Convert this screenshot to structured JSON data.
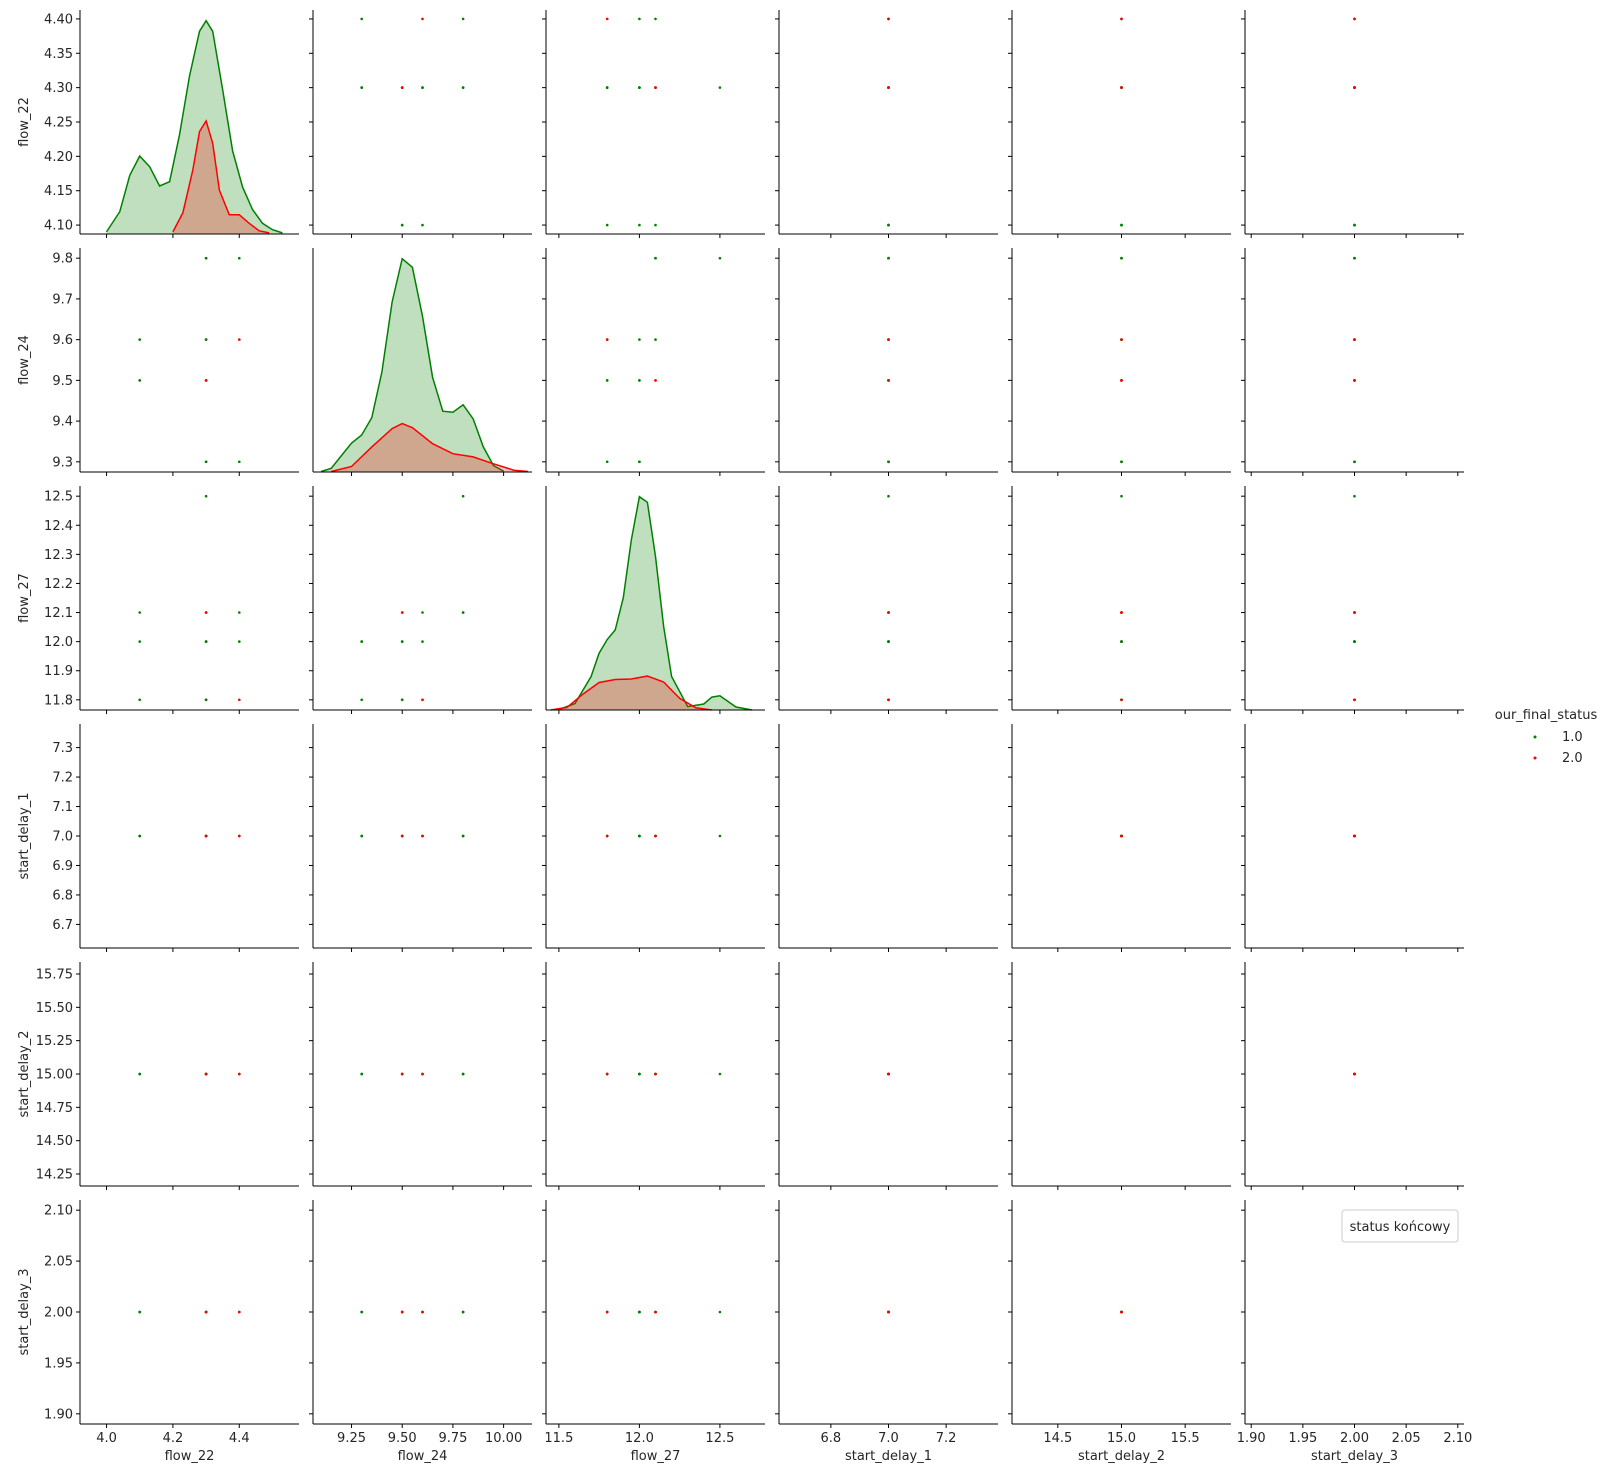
{
  "chart_data": {
    "type": "scatter",
    "subtype": "pairplot",
    "variables": [
      "flow_22",
      "flow_24",
      "flow_27",
      "start_delay_1",
      "start_delay_2",
      "start_delay_3"
    ],
    "hue": "our_final_status",
    "series": [
      {
        "name": "1.0",
        "color": "#008000",
        "points": [
          [
            4.3,
            9.3,
            12.0,
            7.0,
            15.0,
            2.0
          ],
          [
            4.4,
            9.8,
            12.1,
            7.0,
            15.0,
            2.0
          ],
          [
            4.3,
            9.5,
            11.8,
            7.0,
            15.0,
            2.0
          ],
          [
            4.1,
            9.5,
            12.0,
            7.0,
            15.0,
            2.0
          ],
          [
            4.1,
            9.6,
            12.1,
            7.0,
            15.0,
            2.0
          ],
          [
            4.3,
            9.5,
            12.0,
            7.0,
            15.0,
            2.0
          ],
          [
            4.3,
            9.8,
            12.5,
            7.0,
            15.0,
            2.0
          ],
          [
            4.3,
            9.3,
            11.8,
            7.0,
            15.0,
            2.0
          ],
          [
            4.4,
            9.3,
            12.0,
            7.0,
            15.0,
            2.0
          ],
          [
            4.3,
            9.6,
            12.0,
            7.0,
            15.0,
            2.0
          ],
          [
            4.3,
            9.6,
            11.8,
            7.0,
            15.0,
            2.0
          ],
          [
            4.1,
            9.5,
            11.8,
            7.0,
            15.0,
            2.0
          ],
          [
            4.3,
            9.8,
            12.1,
            7.0,
            15.0,
            2.0
          ]
        ]
      },
      {
        "name": "2.0",
        "color": "#ff0000",
        "points": [
          [
            4.4,
            9.6,
            11.8,
            7.0,
            15.0,
            2.0
          ],
          [
            4.3,
            9.5,
            12.1,
            7.0,
            15.0,
            2.0
          ],
          [
            4.3,
            9.5,
            12.1,
            7.0,
            15.0,
            2.0
          ]
        ]
      }
    ],
    "axes": [
      {
        "name": "flow_22",
        "lim": [
          3.92,
          4.58
        ],
        "ticks": [
          4.0,
          4.2,
          4.4
        ],
        "tick_labels": [
          "4.0",
          "4.2",
          "4.4"
        ],
        "y_lim": [
          4.087,
          4.413
        ],
        "y_ticks": [
          4.1,
          4.15,
          4.2,
          4.25,
          4.3,
          4.35,
          4.4
        ],
        "y_tick_labels": [
          "4.10",
          "4.15",
          "4.20",
          "4.25",
          "4.30",
          "4.35",
          "4.40"
        ]
      },
      {
        "name": "flow_24",
        "lim": [
          9.06,
          10.14
        ],
        "ticks": [
          9.25,
          9.5,
          9.75,
          10.0
        ],
        "tick_labels": [
          "9.25",
          "9.50",
          "9.75",
          "10.00"
        ],
        "y_lim": [
          9.275,
          9.825
        ],
        "y_ticks": [
          9.3,
          9.4,
          9.5,
          9.6,
          9.7,
          9.8
        ],
        "y_tick_labels": [
          "9.3",
          "9.4",
          "9.5",
          "9.6",
          "9.7",
          "9.8"
        ]
      },
      {
        "name": "flow_27",
        "lim": [
          11.42,
          12.78
        ],
        "ticks": [
          11.5,
          12.0,
          12.5
        ],
        "tick_labels": [
          "11.5",
          "12.0",
          "12.5"
        ],
        "y_lim": [
          11.765,
          12.535
        ],
        "y_ticks": [
          11.8,
          11.9,
          12.0,
          12.1,
          12.2,
          12.3,
          12.4,
          12.5
        ],
        "y_tick_labels": [
          "11.8",
          "11.9",
          "12.0",
          "12.1",
          "12.2",
          "12.3",
          "12.4",
          "12.5"
        ]
      },
      {
        "name": "start_delay_1",
        "lim": [
          6.62,
          7.38
        ],
        "ticks": [
          6.8,
          7.0,
          7.2
        ],
        "tick_labels": [
          "6.8",
          "7.0",
          "7.2"
        ],
        "y_lim": [
          6.62,
          7.38
        ],
        "y_ticks": [
          6.7,
          6.8,
          6.9,
          7.0,
          7.1,
          7.2,
          7.3
        ],
        "y_tick_labels": [
          "6.7",
          "6.8",
          "6.9",
          "7.0",
          "7.1",
          "7.2",
          "7.3"
        ]
      },
      {
        "name": "start_delay_2",
        "lim": [
          14.14,
          15.86
        ],
        "ticks": [
          14.5,
          15.0,
          15.5
        ],
        "tick_labels": [
          "14.5",
          "15.0",
          "15.5"
        ],
        "y_lim": [
          14.16,
          15.84
        ],
        "y_ticks": [
          14.25,
          14.5,
          14.75,
          15.0,
          15.25,
          15.5,
          15.75
        ],
        "y_tick_labels": [
          "14.25",
          "14.50",
          "14.75",
          "15.00",
          "15.25",
          "15.50",
          "15.75"
        ]
      },
      {
        "name": "start_delay_3",
        "lim": [
          1.894,
          2.106
        ],
        "ticks": [
          1.9,
          1.95,
          2.0,
          2.05,
          2.1
        ],
        "tick_labels": [
          "1.90",
          "1.95",
          "2.00",
          "2.05",
          "2.10"
        ],
        "y_lim": [
          1.89,
          2.11
        ],
        "y_ticks": [
          1.9,
          1.95,
          2.0,
          2.05,
          2.1
        ],
        "y_tick_labels": [
          "1.90",
          "1.95",
          "2.00",
          "2.05",
          "2.10"
        ]
      }
    ],
    "diag_kde": [
      {
        "variable": "flow_22",
        "curves": [
          {
            "series": "1.0",
            "x": [
              4.0,
              4.04,
              4.07,
              4.1,
              4.13,
              4.16,
              4.19,
              4.22,
              4.25,
              4.28,
              4.3,
              4.32,
              4.35,
              4.38,
              4.41,
              4.44,
              4.47,
              4.5,
              4.53
            ],
            "y": [
              0.02,
              0.21,
              0.55,
              0.73,
              0.63,
              0.45,
              0.49,
              0.93,
              1.48,
              1.9,
              2.0,
              1.9,
              1.35,
              0.78,
              0.44,
              0.23,
              0.1,
              0.04,
              0.01
            ]
          },
          {
            "series": "2.0",
            "x": [
              4.2,
              4.23,
              4.26,
              4.28,
              4.3,
              4.32,
              4.34,
              4.37,
              4.4,
              4.43,
              4.46,
              4.49
            ],
            "y": [
              0.02,
              0.2,
              0.6,
              0.96,
              1.06,
              0.85,
              0.41,
              0.18,
              0.18,
              0.1,
              0.03,
              0.01
            ]
          }
        ]
      },
      {
        "variable": "flow_24",
        "curves": [
          {
            "series": "1.0",
            "x": [
              9.1,
              9.15,
              9.2,
              9.25,
              9.3,
              9.35,
              9.4,
              9.45,
              9.5,
              9.55,
              9.6,
              9.65,
              9.7,
              9.75,
              9.8,
              9.85,
              9.9,
              9.95,
              10.0
            ],
            "y": [
              0.01,
              0.08,
              0.36,
              0.63,
              0.81,
              1.19,
              2.19,
              3.72,
              4.67,
              4.48,
              3.41,
              2.07,
              1.33,
              1.31,
              1.47,
              1.16,
              0.55,
              0.14,
              0.02
            ]
          },
          {
            "series": "2.0",
            "x": [
              9.15,
              9.25,
              9.35,
              9.45,
              9.5,
              9.55,
              9.65,
              9.75,
              9.85,
              9.95,
              10.05,
              10.12
            ],
            "y": [
              0.01,
              0.12,
              0.55,
              0.95,
              1.06,
              0.97,
              0.62,
              0.4,
              0.33,
              0.18,
              0.04,
              0.01
            ]
          }
        ]
      },
      {
        "variable": "flow_27",
        "curves": [
          {
            "series": "1.0",
            "x": [
              11.5,
              11.6,
              11.7,
              11.75,
              11.8,
              11.85,
              11.9,
              11.95,
              12.0,
              12.05,
              12.1,
              12.15,
              12.2,
              12.3,
              12.4,
              12.45,
              12.5,
              12.6,
              12.7
            ],
            "y": [
              0.01,
              0.15,
              0.78,
              1.32,
              1.64,
              1.86,
              2.61,
              3.95,
              4.96,
              4.83,
              3.57,
              1.95,
              0.78,
              0.08,
              0.14,
              0.3,
              0.33,
              0.07,
              0.0
            ]
          },
          {
            "series": "2.0",
            "x": [
              11.45,
              11.55,
              11.65,
              11.75,
              11.85,
              11.95,
              12.05,
              12.15,
              12.25,
              12.35,
              12.45
            ],
            "y": [
              0.0,
              0.06,
              0.37,
              0.64,
              0.71,
              0.72,
              0.79,
              0.65,
              0.27,
              0.05,
              0.0
            ]
          }
        ]
      }
    ],
    "legend": {
      "title": "our_final_status",
      "entries": [
        "1.0",
        "2.0"
      ],
      "position": "right"
    },
    "annotation_box": {
      "text": "status końcowy",
      "panel": "start_delay_3 x start_delay_3",
      "position": "top-right"
    }
  }
}
